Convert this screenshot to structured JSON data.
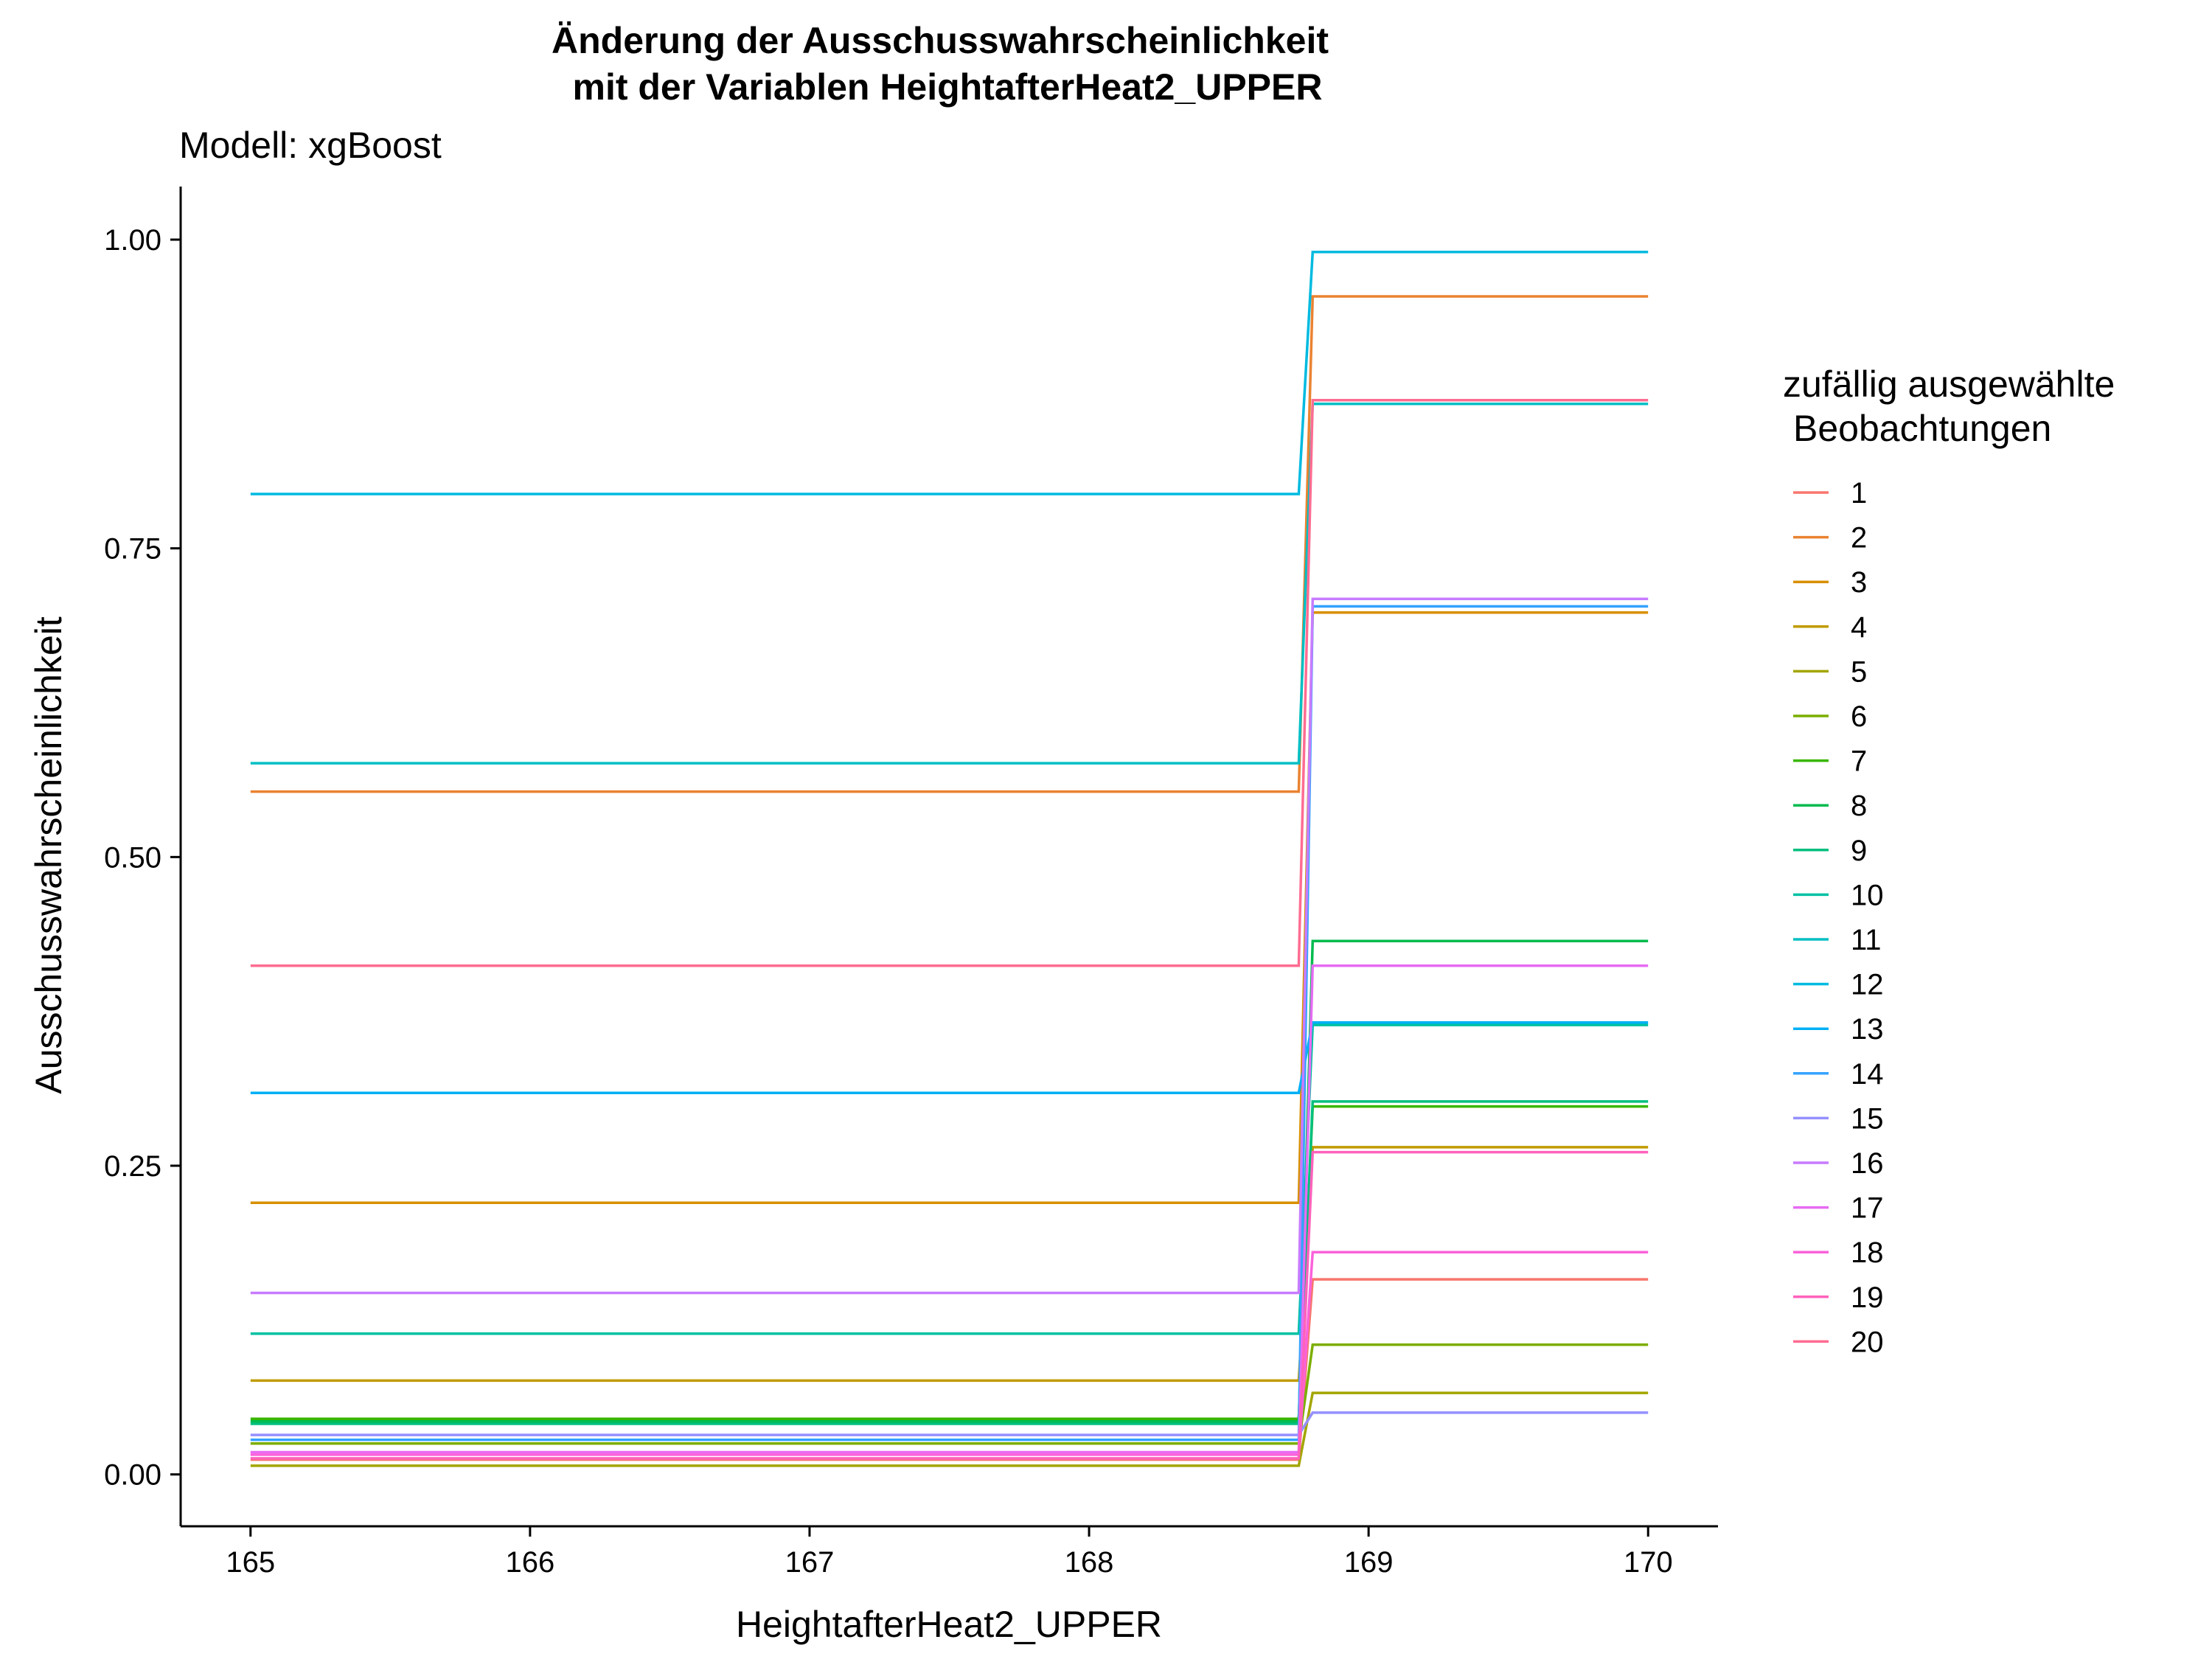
{
  "chart_data": {
    "type": "line",
    "title_line1": "Änderung der Ausschusswahrscheinlichkeit",
    "title_line2": "mit der Variablen HeightafterHeat2_UPPER",
    "subtitle": "Modell: xgBoost",
    "xlabel": "HeightafterHeat2_UPPER",
    "ylabel": "Ausschusswahrscheinlichkeit",
    "xlim": [
      164.75,
      170.25
    ],
    "ylim": [
      -0.042,
      1.043
    ],
    "x_ticks": [
      165,
      166,
      167,
      168,
      169,
      170
    ],
    "x_tick_labels": [
      "165",
      "166",
      "167",
      "168",
      "169",
      "170"
    ],
    "y_ticks": [
      0,
      0.25,
      0.5,
      0.75,
      1.0
    ],
    "y_tick_labels": [
      "0.00",
      "0.25",
      "0.50",
      "0.75",
      "1.00"
    ],
    "grid": false,
    "legend_title_line1": "zufällig ausgewählte",
    "legend_title_line2": "Beobachtungen",
    "legend_position": "right",
    "x": [
      165,
      168.75,
      168.8,
      170
    ],
    "series": [
      {
        "name": "1",
        "color": "#F8766D",
        "values": [
          0.012,
          0.012,
          0.158,
          0.158
        ]
      },
      {
        "name": "2",
        "color": "#EA8331",
        "values": [
          0.553,
          0.553,
          0.954,
          0.954
        ]
      },
      {
        "name": "3",
        "color": "#D89000",
        "values": [
          0.22,
          0.22,
          0.698,
          0.698
        ]
      },
      {
        "name": "4",
        "color": "#C09B00",
        "values": [
          0.076,
          0.076,
          0.265,
          0.265
        ]
      },
      {
        "name": "5",
        "color": "#A3A500",
        "values": [
          0.007,
          0.007,
          0.066,
          0.066
        ]
      },
      {
        "name": "6",
        "color": "#7CAE00",
        "values": [
          0.025,
          0.025,
          0.105,
          0.105
        ]
      },
      {
        "name": "7",
        "color": "#39B600",
        "values": [
          0.045,
          0.045,
          0.298,
          0.298
        ]
      },
      {
        "name": "8",
        "color": "#00BB4E",
        "values": [
          0.043,
          0.043,
          0.432,
          0.432
        ]
      },
      {
        "name": "9",
        "color": "#00BF7D",
        "values": [
          0.041,
          0.041,
          0.302,
          0.302
        ]
      },
      {
        "name": "10",
        "color": "#00C1A3",
        "values": [
          0.114,
          0.114,
          0.364,
          0.364
        ]
      },
      {
        "name": "11",
        "color": "#00BFC4",
        "values": [
          0.576,
          0.576,
          0.867,
          0.867
        ]
      },
      {
        "name": "12",
        "color": "#00BAE0",
        "values": [
          0.794,
          0.794,
          0.99,
          0.99
        ]
      },
      {
        "name": "13",
        "color": "#00B0F6",
        "values": [
          0.309,
          0.309,
          0.366,
          0.366
        ]
      },
      {
        "name": "14",
        "color": "#35A2FF",
        "values": [
          0.028,
          0.028,
          0.703,
          0.703
        ]
      },
      {
        "name": "15",
        "color": "#9590FF",
        "values": [
          0.032,
          0.032,
          0.05,
          0.05
        ]
      },
      {
        "name": "16",
        "color": "#C77CFF",
        "values": [
          0.147,
          0.147,
          0.709,
          0.709
        ]
      },
      {
        "name": "17",
        "color": "#E76BF3",
        "values": [
          0.018,
          0.018,
          0.412,
          0.412
        ]
      },
      {
        "name": "18",
        "color": "#FA62DB",
        "values": [
          0.016,
          0.016,
          0.18,
          0.18
        ]
      },
      {
        "name": "19",
        "color": "#FF62BC",
        "values": [
          0.013,
          0.013,
          0.261,
          0.261
        ]
      },
      {
        "name": "20",
        "color": "#FF6C91",
        "values": [
          0.412,
          0.412,
          0.87,
          0.87
        ]
      }
    ]
  }
}
